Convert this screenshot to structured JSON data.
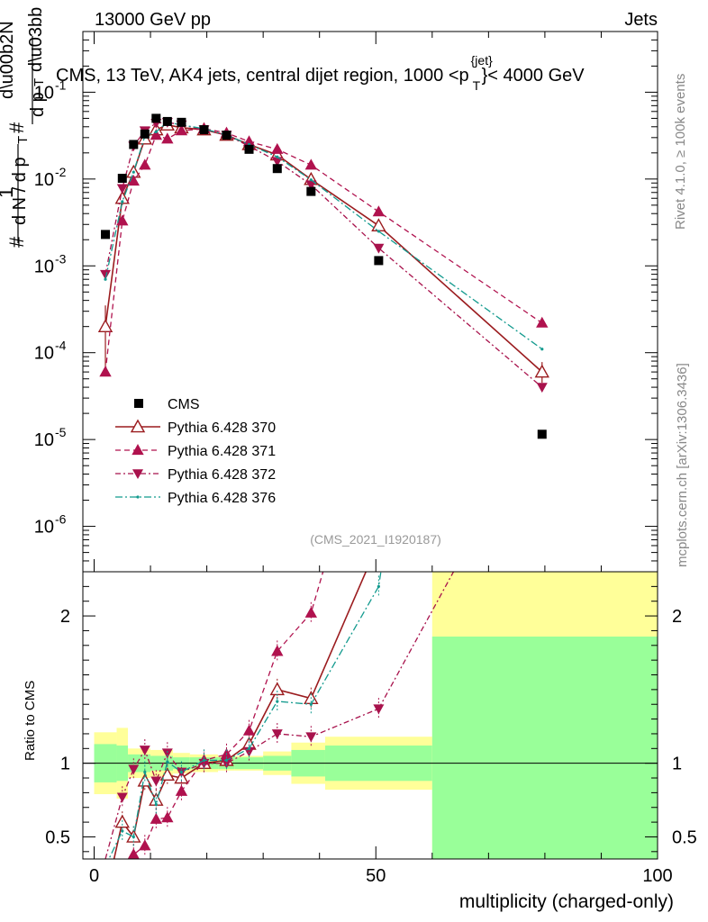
{
  "header": {
    "left": "13000 GeV pp",
    "right": "Jets"
  },
  "side_labels": {
    "rivet": "Rivet 4.1.0, ≥ 100k events",
    "mcplots": "mcplots.cern.ch [arXiv:1306.3436]"
  },
  "chart_data": {
    "type": "scatter",
    "title": "CMS, 13 TeV, AK4 jets, central dijet region, 1000 <p",
    "title_super": "{jet}",
    "title_sub": "T",
    "title_suffix": "}< 4000 GeV",
    "watermark": "(CMS_2021_I1920187)",
    "xlabel": "multiplicity (charged-only)",
    "ylabel_main": "1/N dN/d p_T dλ (stacked fraction notation)",
    "ylabel_ratio": "Ratio to CMS",
    "xlim": [
      -2,
      100
    ],
    "ylim_main": [
      3e-07,
      0.5
    ],
    "y_log": true,
    "ylim_ratio": [
      0.35,
      2.3
    ],
    "xticks": [
      0,
      50,
      100
    ],
    "main_ytick_labels": [
      "10",
      "10",
      "10",
      "10",
      "10",
      "10"
    ],
    "main_ytick_exponents": [
      "-1",
      "-2",
      "-3",
      "-4",
      "-5",
      "-6"
    ],
    "main_yticks": [
      0.1,
      0.01,
      0.001,
      0.0001,
      1e-05,
      1e-06
    ],
    "ratio_yticks": [
      0.5,
      1,
      2
    ],
    "ratio_ytick_labels": [
      "0.5",
      "1",
      "2"
    ],
    "legend": {
      "placement": "middle-left",
      "entries": [
        "CMS",
        "Pythia 6.428 370",
        "Pythia 6.428 371",
        "Pythia 6.428 372",
        "Pythia 6.428 376"
      ]
    },
    "colors": {
      "cms": "#000000",
      "p370": "#9b1c1f",
      "p371": "#b0124e",
      "p372": "#a8124c",
      "p376": "#129a8e",
      "band_inner": "#99ff99",
      "band_outer": "#ffff99"
    },
    "data": {
      "name": "CMS",
      "x": [
        2,
        5,
        7,
        9,
        11,
        13,
        15.5,
        19.5,
        23.5,
        27.5,
        32.5,
        38.5,
        50.5,
        79.5
      ],
      "y": [
        0.0023,
        0.0102,
        0.025,
        0.033,
        0.05,
        0.046,
        0.045,
        0.037,
        0.032,
        0.022,
        0.0132,
        0.0072,
        0.00115,
        1.15e-05
      ]
    },
    "bands": {
      "x_edges": [
        0,
        4,
        6,
        8,
        10,
        12,
        14,
        17,
        22,
        25,
        30,
        35,
        41,
        60,
        100
      ],
      "inner": [
        0.13,
        0.12,
        0.06,
        0.06,
        0.05,
        0.05,
        0.04,
        0.04,
        0.04,
        0.04,
        0.05,
        0.09,
        0.12,
        0.86
      ],
      "outer": [
        0.21,
        0.24,
        0.1,
        0.1,
        0.09,
        0.09,
        0.07,
        0.06,
        0.05,
        0.05,
        0.08,
        0.14,
        0.18,
        1.5
      ]
    },
    "series": [
      {
        "name": "Pythia 6.428 370",
        "x": [
          2,
          5,
          7,
          9,
          11,
          13,
          15.5,
          19.5,
          23.5,
          27.5,
          32.5,
          38.5,
          50.5,
          79.5
        ],
        "y": [
          0.0002,
          0.006,
          0.012,
          0.029,
          0.037,
          0.042,
          0.039,
          0.037,
          0.032,
          0.025,
          0.019,
          0.0099,
          0.0029,
          6e-05
        ],
        "err_lo": [
          0.00014,
          0.001,
          0.001,
          0.001,
          0.001,
          0.001,
          0.001,
          0.001,
          0.001,
          0.001,
          0.001,
          0.0005,
          0.0002,
          1.5e-05
        ],
        "err_hi": [
          0.00015,
          0.001,
          0.001,
          0.001,
          0.001,
          0.001,
          0.001,
          0.001,
          0.001,
          0.001,
          0.001,
          0.0005,
          0.0002,
          1.8e-05
        ],
        "ratio": [
          0.09,
          0.6,
          0.5,
          0.88,
          0.75,
          0.92,
          0.9,
          1.0,
          1.02,
          1.13,
          1.5,
          1.44,
          2.5,
          5.0
        ]
      },
      {
        "name": "Pythia 6.428 371",
        "x": [
          2,
          5,
          7,
          9,
          11,
          13,
          15.5,
          19.5,
          23.5,
          27.5,
          32.5,
          38.5,
          50.5,
          79.5
        ],
        "y": [
          6e-05,
          0.0033,
          0.0095,
          0.0145,
          0.032,
          0.029,
          0.036,
          0.038,
          0.034,
          0.027,
          0.022,
          0.0145,
          0.0042,
          0.00022
        ],
        "ratio": [
          0.03,
          0.32,
          0.38,
          0.44,
          0.62,
          0.63,
          0.81,
          1.02,
          1.06,
          1.22,
          1.76,
          2.02,
          3.6,
          19.0
        ]
      },
      {
        "name": "Pythia 6.428 372",
        "x": [
          2,
          5,
          7,
          9,
          11,
          13,
          15.5,
          19.5,
          23.5,
          27.5,
          32.5,
          38.5,
          50.5,
          79.5
        ],
        "y": [
          0.0008,
          0.0078,
          0.024,
          0.036,
          0.044,
          0.045,
          0.042,
          0.037,
          0.032,
          0.024,
          0.016,
          0.0086,
          0.0016,
          4e-05
        ],
        "ratio": [
          0.35,
          0.77,
          0.96,
          1.09,
          0.88,
          1.07,
          0.94,
          1.0,
          1.0,
          1.08,
          1.2,
          1.18,
          1.37,
          3.4
        ]
      },
      {
        "name": "Pythia 6.428 376",
        "x": [
          2,
          5,
          7,
          9,
          11,
          13,
          15.5,
          19.5,
          23.5,
          27.5,
          32.5,
          38.5,
          50.5,
          79.5
        ],
        "y": [
          0.0007,
          0.0055,
          0.012,
          0.031,
          0.035,
          0.045,
          0.042,
          0.038,
          0.032,
          0.025,
          0.018,
          0.0098,
          0.0025,
          0.00011
        ],
        "ratio": [
          0.3,
          0.54,
          0.5,
          0.94,
          0.72,
          1.01,
          0.94,
          1.02,
          1.02,
          1.1,
          1.42,
          1.4,
          2.2,
          9.5
        ]
      }
    ]
  }
}
